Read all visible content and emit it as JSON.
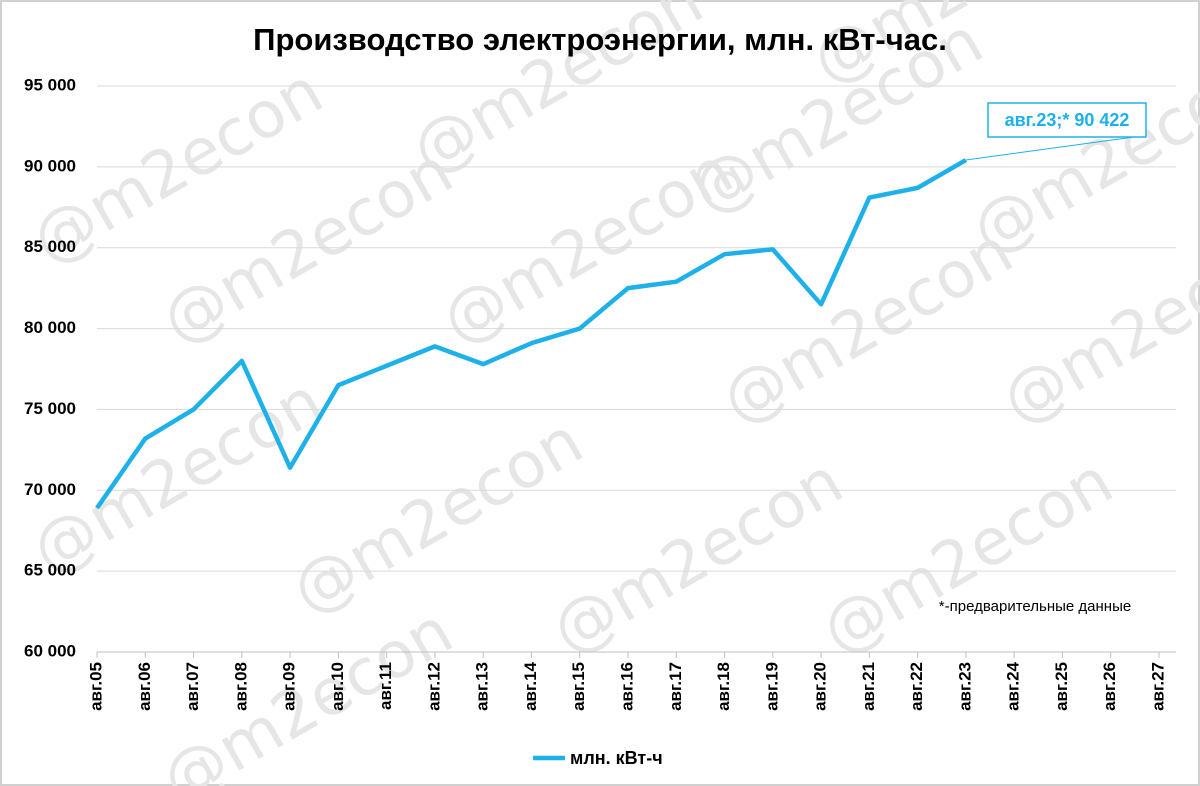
{
  "chart_data": {
    "type": "line",
    "title": "Производство электроэнергии, млн. кВт-час.",
    "categories": [
      "авг.05",
      "авг.06",
      "авг.07",
      "авг.08",
      "авг.09",
      "авг.10",
      "авг.11",
      "авг.12",
      "авг.13",
      "авг.14",
      "авг.15",
      "авг.16",
      "авг.17",
      "авг.18",
      "авг.19",
      "авг.20",
      "авг.21",
      "авг.22",
      "авг.23",
      "авг.24",
      "авг.25",
      "авг.26",
      "авг.27"
    ],
    "series": [
      {
        "name": "млн. кВт-ч",
        "color": "#1eb1e9",
        "values": [
          68900,
          73200,
          75000,
          78000,
          71400,
          76500,
          77700,
          78900,
          77800,
          79100,
          80000,
          82500,
          82900,
          84600,
          84900,
          81500,
          88100,
          88700,
          90422,
          null,
          null,
          null,
          null
        ],
        "value_labels": [
          null,
          null,
          null,
          null,
          null,
          null,
          null,
          null,
          null,
          null,
          null,
          null,
          null,
          null,
          null,
          null,
          null,
          null,
          "авг.23;* 90 422",
          null,
          null,
          null,
          null
        ]
      }
    ],
    "ylim": [
      60000,
      95000
    ],
    "yticks": [
      {
        "value": 60000,
        "label": "60 000"
      },
      {
        "value": 65000,
        "label": "65 000"
      },
      {
        "value": 70000,
        "label": "70 000"
      },
      {
        "value": 75000,
        "label": "75 000"
      },
      {
        "value": 80000,
        "label": "80 000"
      },
      {
        "value": 85000,
        "label": "85 000"
      },
      {
        "value": 90000,
        "label": "90 000"
      },
      {
        "value": 95000,
        "label": "95 000"
      }
    ],
    "grid": true,
    "legend": "bottom",
    "annotation": "*-предварительные данные",
    "watermark": "@m2econ"
  }
}
